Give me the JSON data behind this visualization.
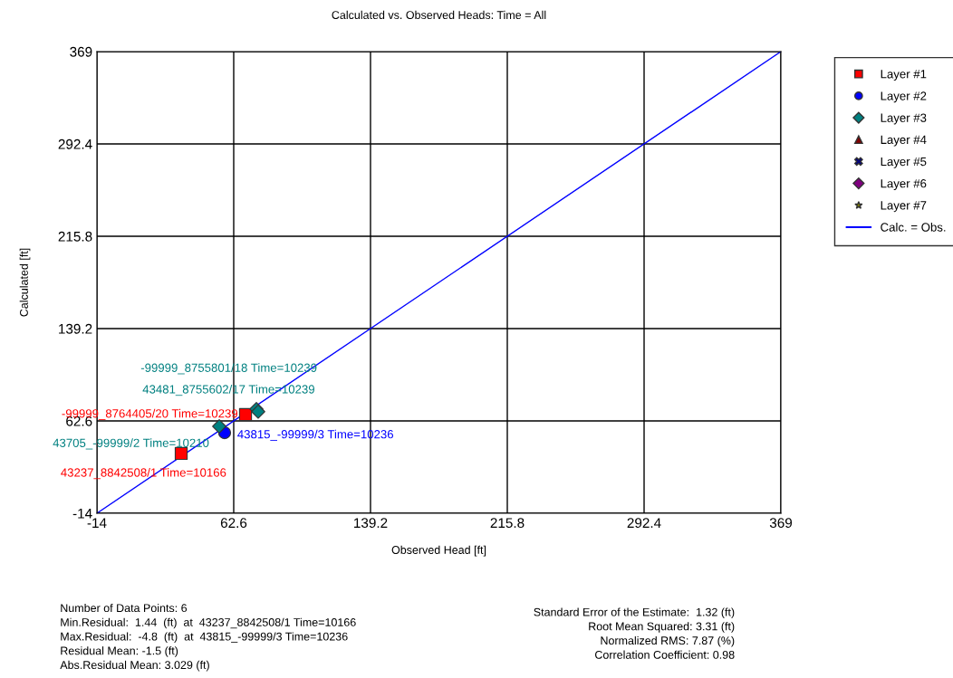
{
  "chart_data": {
    "type": "scatter",
    "title": "Calculated vs. Observed Heads: Time = All",
    "xlabel": "Observed Head [ft]",
    "ylabel": "Calculated [ft]",
    "xlim": [
      -14,
      369
    ],
    "ylim": [
      -14,
      369
    ],
    "xticks": [
      -14,
      62.6,
      139.2,
      215.8,
      292.4,
      369
    ],
    "yticks": [
      -14,
      62.6,
      139.2,
      215.8,
      292.4,
      369
    ],
    "grid": true,
    "legend": "top right",
    "series": [
      {
        "name": "Layer #1",
        "color": "#ff0000",
        "marker": "square",
        "x": [
          33.2,
          69.2
        ],
        "values": [
          35.6,
          67.9
        ],
        "value_labels": [
          "43237_8842508/1 Time=10166",
          "-99999_8764405/20 Time=10239"
        ]
      },
      {
        "name": "Layer #2",
        "color": "#0000ff",
        "marker": "circle",
        "x": [
          57.5
        ],
        "values": [
          52.8
        ],
        "value_labels": [
          "43815_-99999/3 Time=10236"
        ]
      },
      {
        "name": "Layer #3",
        "color": "#008080",
        "marker": "diamond",
        "x": [
          54.5,
          75.3,
          76.3
        ],
        "values": [
          58.1,
          72.5,
          70.3
        ],
        "value_labels": [
          "43705_-99999/2 Time=10210",
          "-99999_8755801/18 Time=10239",
          "43481_8755602/17 Time=10239"
        ]
      },
      {
        "name": "Layer #4",
        "color": "#800000",
        "marker": "triangle"
      },
      {
        "name": "Layer #5",
        "color": "#000080",
        "marker": "cross"
      },
      {
        "name": "Layer #6",
        "color": "#800080",
        "marker": "diamond"
      },
      {
        "name": "Layer #7",
        "color": "#808000",
        "marker": "star"
      },
      {
        "name": "Calc. = Obs.",
        "type": "line",
        "color": "#0000ff",
        "marker": "none",
        "x": [
          -14,
          369
        ],
        "values": [
          -14,
          369
        ]
      }
    ],
    "annotations": [
      "Number of Data Points: 6\nMin.Residual:  1.44  (ft)  at  43237_8842508/1 Time=10166\nMax.Residual:  -4.8  (ft)  at  43815_-99999/3 Time=10236\nResidual Mean: -1.5 (ft)\nAbs.Residual Mean: 3.029 (ft)",
      "Standard Error of the Estimate:  1.32 (ft)\nRoot Mean Squared: 3.31 (ft)\nNormalized RMS: 7.87 (%)\nCorrelation Coefficient: 0.98"
    ]
  }
}
